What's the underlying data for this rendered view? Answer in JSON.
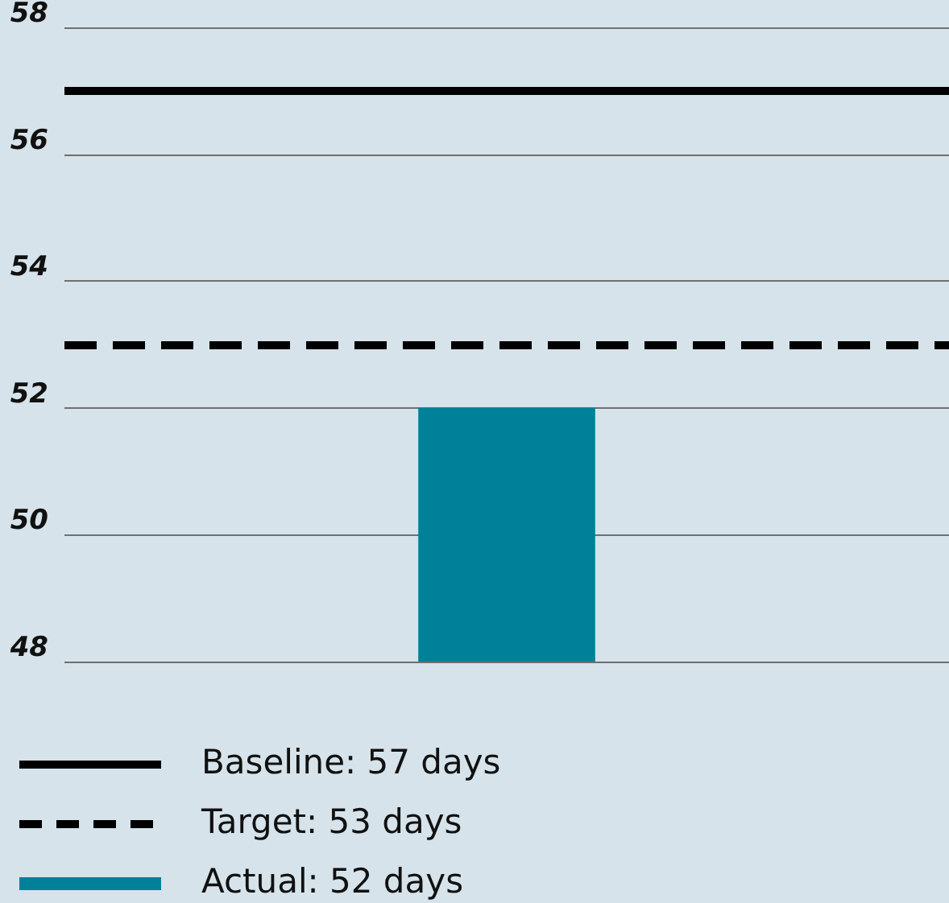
{
  "chart_data": {
    "type": "bar",
    "categories": [
      null
    ],
    "series": [
      {
        "name": "Actual: 52 days",
        "color": "#00819a",
        "values": [
          52
        ]
      }
    ],
    "ylim": [
      48,
      58
    ],
    "yticks": [
      48,
      50,
      52,
      54,
      56,
      58
    ],
    "grid": "y",
    "legend": "bottom",
    "ref_lines": [
      {
        "axis": "y",
        "value": 57,
        "label": "Baseline: 57 days",
        "color": "#000000",
        "line_style": "solid"
      },
      {
        "axis": "y",
        "value": 53,
        "label": "Target: 53 days",
        "color": "#000000",
        "line_style": "dashed"
      }
    ]
  }
}
